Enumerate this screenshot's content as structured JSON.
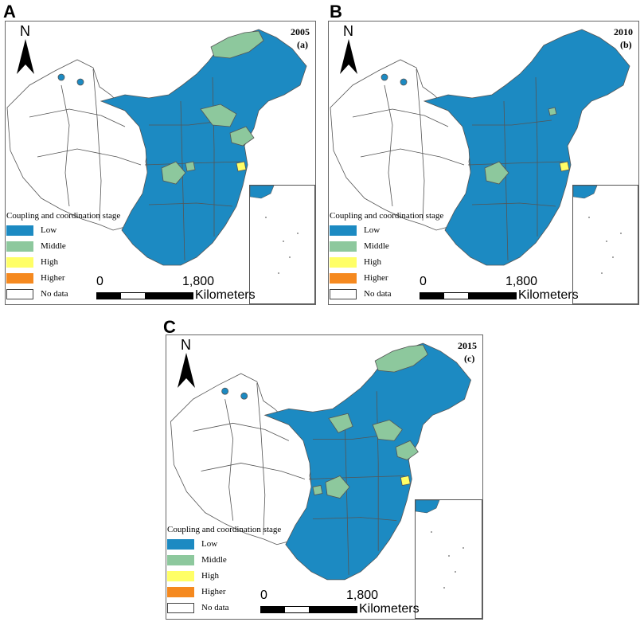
{
  "panels": [
    {
      "letter": "A",
      "year": "2005",
      "sub": "(a)"
    },
    {
      "letter": "B",
      "year": "2010",
      "sub": "(b)"
    },
    {
      "letter": "C",
      "year": "2015",
      "sub": "(c)"
    }
  ],
  "north_label": "N",
  "legend": {
    "title": "Coupling and coordination stage",
    "items": [
      {
        "label": "Low",
        "color": "#1C8AC2"
      },
      {
        "label": "Middle",
        "color": "#8DC89D"
      },
      {
        "label": "High",
        "color": "#FFFF66"
      },
      {
        "label": "Higher",
        "color": "#F5891F"
      },
      {
        "label": "No data",
        "color": "#FFFFFF"
      }
    ]
  },
  "scale": {
    "start": "0",
    "end": "1,800",
    "unit": "Kilometers"
  },
  "colors": {
    "low": "#1C8AC2",
    "middle": "#8DC89D",
    "high": "#FFFF66",
    "outline": "#555555"
  }
}
